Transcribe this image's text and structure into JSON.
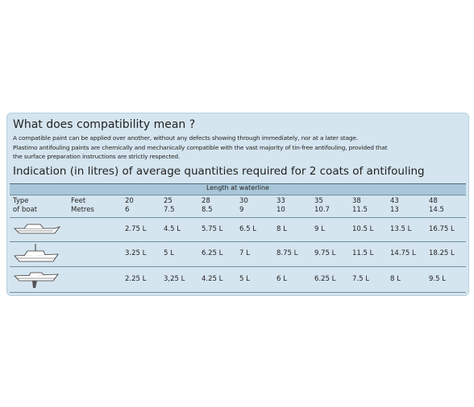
{
  "header": {
    "title": "What does compatibility mean ?",
    "paragraph": [
      "A compatible paint can be applied over another, without any defects showing through immediately, nor at a later stage.",
      "Plastimo antifouling paints are chemically and mechanically compatible with the vast majority of tin-free antifouling, provided that",
      "the surface preparation instructions are strictly respected."
    ],
    "subtitle": "Indication (in litres) of average quantities required for 2 coats of antifouling"
  },
  "table": {
    "caption": "Length at waterline",
    "type_label": [
      "Type",
      "of boat"
    ],
    "unit_label": [
      "Feet",
      "Metres"
    ],
    "feet": [
      "20",
      "25",
      "28",
      "30",
      "33",
      "35",
      "38",
      "43",
      "48"
    ],
    "metres": [
      "6",
      "7.5",
      "8.5",
      "9",
      "10",
      "10.7",
      "11.5",
      "13",
      "14.5"
    ],
    "rows": [
      [
        "2.75 L",
        "4.5 L",
        "5.75 L",
        "6.5 L",
        "8 L",
        "9 L",
        "10.5 L",
        "13.5 L",
        "16.75 L"
      ],
      [
        "3.25 L",
        "5 L",
        "6.25 L",
        "7 L",
        "8.75 L",
        "9.75 L",
        "11.5 L",
        "14.75 L",
        "18.25 L"
      ],
      [
        "2.25 L",
        "3,25 L",
        "4.25 L",
        "5 L",
        "6 L",
        "6.25 L",
        "7.5 L",
        "8 L",
        "9.5 L"
      ]
    ]
  }
}
